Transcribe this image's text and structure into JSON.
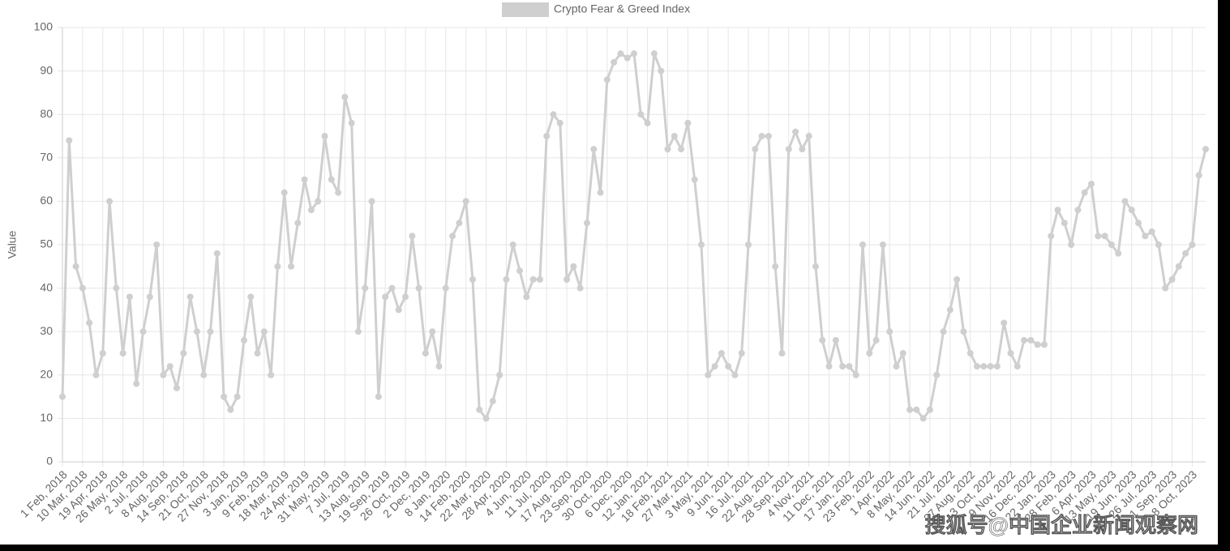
{
  "chart_data": {
    "type": "line",
    "legend_label": "Crypto Fear & Greed Index",
    "y_label": "Value",
    "watermark": "搜狐号@中国企业新闻观察网",
    "color": "#cfcfcf",
    "grid": true,
    "ylim": [
      0,
      100
    ],
    "yticks": [
      0,
      10,
      20,
      30,
      40,
      50,
      60,
      70,
      80,
      90,
      100
    ],
    "categories": [
      "1 Feb, 2018",
      null,
      null,
      "10 Mar, 2018",
      null,
      null,
      "19 Apr, 2018",
      null,
      null,
      "26 May, 2018",
      null,
      null,
      "2 Jul, 2018",
      null,
      null,
      "8 Aug, 2018",
      null,
      null,
      "14 Sep, 2018",
      null,
      null,
      "21 Oct, 2018",
      null,
      null,
      "27 Nov, 2018",
      null,
      null,
      "3 Jan, 2019",
      null,
      null,
      "9 Feb, 2019",
      null,
      null,
      "18 Mar, 2019",
      null,
      null,
      "24 Apr, 2019",
      null,
      null,
      "31 May, 2019",
      null,
      null,
      "7 Jul, 2019",
      null,
      null,
      "13 Aug, 2019",
      null,
      null,
      "19 Sep, 2019",
      null,
      null,
      "26 Oct, 2019",
      null,
      null,
      "2 Dec, 2019",
      null,
      null,
      "8 Jan, 2020",
      null,
      null,
      "14 Feb, 2020",
      null,
      null,
      "22 Mar, 2020",
      null,
      null,
      "28 Apr, 2020",
      null,
      null,
      "4 Jun, 2020",
      null,
      null,
      "11 Jul, 2020",
      null,
      null,
      "17 Aug, 2020",
      null,
      null,
      "23 Sep, 2020",
      null,
      null,
      "30 Oct, 2020",
      null,
      null,
      "6 Dec, 2020",
      null,
      null,
      "12 Jan, 2021",
      null,
      null,
      "18 Feb, 2021",
      null,
      null,
      "27 Mar, 2021",
      null,
      null,
      "3 May, 2021",
      null,
      null,
      "9 Jun, 2021",
      null,
      null,
      "16 Jul, 2021",
      null,
      null,
      "22 Aug, 2021",
      null,
      null,
      "28 Sep, 2021",
      null,
      null,
      "4 Nov, 2021",
      null,
      null,
      "11 Dec, 2021",
      null,
      null,
      "17 Jan, 2022",
      null,
      null,
      "23 Feb, 2022",
      null,
      null,
      "1 Apr, 2022",
      null,
      null,
      "8 May, 2022",
      null,
      null,
      "14 Jun, 2022",
      null,
      null,
      "21 Jul, 2022",
      null,
      null,
      "27 Aug, 2022",
      null,
      null,
      "3 Oct, 2022",
      null,
      null,
      "9 Nov, 2022",
      null,
      null,
      "16 Dec, 2022",
      null,
      null,
      "22 Jan, 2023",
      null,
      null,
      "28 Feb, 2023",
      null,
      null,
      "6 Apr, 2023",
      null,
      null,
      "13 May, 2023",
      null,
      null,
      "19 Jun, 2023",
      null,
      null,
      "26 Jul, 2023",
      null,
      null,
      "1 Sep, 2023",
      null,
      null,
      "8 Oct, 2023",
      null,
      null
    ],
    "values": [
      15,
      74,
      45,
      40,
      32,
      20,
      25,
      60,
      40,
      25,
      38,
      18,
      30,
      38,
      50,
      20,
      22,
      17,
      25,
      38,
      30,
      20,
      30,
      48,
      15,
      12,
      15,
      28,
      38,
      25,
      30,
      20,
      45,
      62,
      45,
      55,
      65,
      58,
      60,
      75,
      65,
      62,
      84,
      78,
      30,
      40,
      60,
      15,
      38,
      40,
      35,
      38,
      52,
      40,
      25,
      30,
      22,
      40,
      52,
      55,
      60,
      42,
      12,
      10,
      14,
      20,
      42,
      50,
      44,
      38,
      42,
      42,
      75,
      80,
      78,
      42,
      45,
      40,
      55,
      72,
      62,
      88,
      92,
      94,
      93,
      94,
      80,
      78,
      94,
      90,
      72,
      75,
      72,
      78,
      65,
      50,
      20,
      22,
      25,
      22,
      20,
      25,
      50,
      72,
      75,
      75,
      45,
      25,
      72,
      76,
      72,
      75,
      45,
      28,
      22,
      28,
      22,
      22,
      20,
      50,
      25,
      28,
      50,
      30,
      22,
      25,
      12,
      12,
      10,
      12,
      20,
      30,
      35,
      42,
      30,
      25,
      22,
      22,
      22,
      22,
      32,
      25,
      22,
      28,
      28,
      27,
      27,
      52,
      58,
      55,
      50,
      58,
      62,
      64,
      52,
      52,
      50,
      48,
      60,
      58,
      55,
      52,
      53,
      50,
      40,
      42,
      45,
      48,
      50,
      66,
      72
    ]
  }
}
